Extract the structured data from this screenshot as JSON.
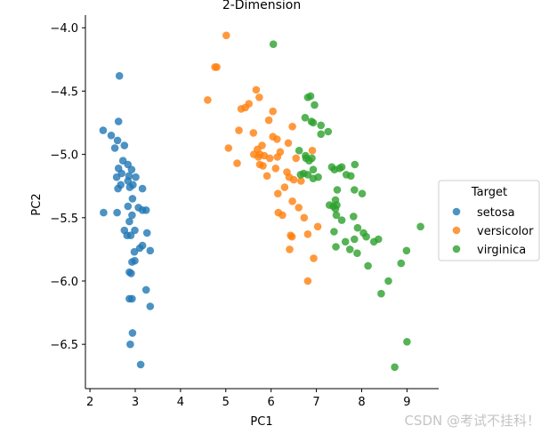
{
  "chart_data": {
    "type": "scatter",
    "title": "2-Dimension",
    "xlabel": "PC1",
    "ylabel": "PC2",
    "xlim": [
      1.9,
      9.7
    ],
    "ylim": [
      -6.85,
      -3.9
    ],
    "xticks": [
      2,
      3,
      4,
      5,
      6,
      7,
      8,
      9
    ],
    "yticks": [
      -4.0,
      -4.5,
      -5.0,
      -5.5,
      -6.0,
      -6.5
    ],
    "grid": false,
    "legend_position": "right",
    "legend_title": "Target",
    "series": [
      {
        "name": "setosa",
        "color": "#1f77b4",
        "points": [
          [
            2.65,
            -4.38
          ],
          [
            2.63,
            -4.74
          ],
          [
            2.29,
            -4.81
          ],
          [
            2.47,
            -4.85
          ],
          [
            2.61,
            -4.89
          ],
          [
            2.76,
            -4.93
          ],
          [
            2.55,
            -4.95
          ],
          [
            2.73,
            -5.05
          ],
          [
            2.84,
            -5.08
          ],
          [
            2.63,
            -5.11
          ],
          [
            2.92,
            -5.12
          ],
          [
            2.7,
            -5.15
          ],
          [
            2.86,
            -5.17
          ],
          [
            3.01,
            -5.18
          ],
          [
            2.59,
            -5.18
          ],
          [
            2.84,
            -5.21
          ],
          [
            2.95,
            -5.24
          ],
          [
            2.68,
            -5.24
          ],
          [
            2.88,
            -5.26
          ],
          [
            2.62,
            -5.27
          ],
          [
            3.16,
            -5.27
          ],
          [
            2.94,
            -5.35
          ],
          [
            2.84,
            -5.41
          ],
          [
            3.07,
            -5.42
          ],
          [
            2.3,
            -5.46
          ],
          [
            2.6,
            -5.46
          ],
          [
            2.93,
            -5.48
          ],
          [
            3.16,
            -5.44
          ],
          [
            3.24,
            -5.44
          ],
          [
            2.87,
            -5.53
          ],
          [
            2.76,
            -5.6
          ],
          [
            2.99,
            -5.6
          ],
          [
            2.82,
            -5.64
          ],
          [
            2.9,
            -5.64
          ],
          [
            3.26,
            -5.62
          ],
          [
            3.16,
            -5.72
          ],
          [
            3.1,
            -5.74
          ],
          [
            2.98,
            -5.77
          ],
          [
            3.33,
            -5.76
          ],
          [
            2.93,
            -5.85
          ],
          [
            2.99,
            -5.84
          ],
          [
            2.87,
            -5.93
          ],
          [
            2.91,
            -5.94
          ],
          [
            3.24,
            -6.07
          ],
          [
            2.87,
            -6.14
          ],
          [
            2.93,
            -6.14
          ],
          [
            3.33,
            -6.2
          ],
          [
            2.94,
            -6.41
          ],
          [
            2.89,
            -6.5
          ],
          [
            3.12,
            -6.66
          ]
        ]
      },
      {
        "name": "versicolor",
        "color": "#ff7f0e",
        "points": [
          [
            5.01,
            -4.06
          ],
          [
            4.8,
            -4.31
          ],
          [
            4.76,
            -4.31
          ],
          [
            4.6,
            -4.57
          ],
          [
            5.67,
            -4.49
          ],
          [
            5.74,
            -4.55
          ],
          [
            5.51,
            -4.6
          ],
          [
            5.43,
            -4.63
          ],
          [
            5.34,
            -4.64
          ],
          [
            6.04,
            -4.66
          ],
          [
            5.95,
            -4.73
          ],
          [
            5.29,
            -4.81
          ],
          [
            5.61,
            -4.83
          ],
          [
            6.47,
            -4.78
          ],
          [
            6.04,
            -4.86
          ],
          [
            6.13,
            -4.88
          ],
          [
            6.38,
            -4.91
          ],
          [
            5.06,
            -4.95
          ],
          [
            5.8,
            -4.93
          ],
          [
            5.7,
            -4.96
          ],
          [
            6.2,
            -4.98
          ],
          [
            6.91,
            -4.97
          ],
          [
            5.75,
            -5.0
          ],
          [
            5.62,
            -5.0
          ],
          [
            5.85,
            -5.01
          ],
          [
            5.72,
            -5.02
          ],
          [
            6.14,
            -5.02
          ],
          [
            5.97,
            -5.03
          ],
          [
            6.55,
            -5.03
          ],
          [
            5.25,
            -5.07
          ],
          [
            5.75,
            -5.08
          ],
          [
            5.82,
            -5.09
          ],
          [
            6.1,
            -5.11
          ],
          [
            6.35,
            -5.14
          ],
          [
            5.91,
            -5.17
          ],
          [
            6.5,
            -5.2
          ],
          [
            6.4,
            -5.18
          ],
          [
            6.66,
            -5.21
          ],
          [
            6.3,
            -5.26
          ],
          [
            6.15,
            -5.31
          ],
          [
            6.47,
            -5.37
          ],
          [
            6.61,
            -5.42
          ],
          [
            6.16,
            -5.46
          ],
          [
            6.73,
            -5.5
          ],
          [
            6.25,
            -5.48
          ],
          [
            7.03,
            -5.57
          ],
          [
            6.43,
            -5.64
          ],
          [
            6.46,
            -5.65
          ],
          [
            6.81,
            -5.63
          ],
          [
            6.41,
            -5.75
          ],
          [
            6.94,
            -5.82
          ],
          [
            6.81,
            -6.0
          ]
        ]
      },
      {
        "name": "virginica",
        "color": "#2ca02c",
        "points": [
          [
            6.05,
            -4.13
          ],
          [
            6.81,
            -4.55
          ],
          [
            6.87,
            -4.54
          ],
          [
            6.96,
            -4.61
          ],
          [
            6.75,
            -4.71
          ],
          [
            6.89,
            -4.74
          ],
          [
            6.93,
            -4.75
          ],
          [
            7.1,
            -4.77
          ],
          [
            7.26,
            -4.82
          ],
          [
            7.1,
            -4.84
          ],
          [
            6.62,
            -4.97
          ],
          [
            6.76,
            -5.01
          ],
          [
            6.77,
            -5.03
          ],
          [
            6.9,
            -5.03
          ],
          [
            6.84,
            -5.05
          ],
          [
            7.34,
            -5.1
          ],
          [
            7.4,
            -5.12
          ],
          [
            7.51,
            -5.11
          ],
          [
            7.56,
            -5.1
          ],
          [
            7.85,
            -5.08
          ],
          [
            6.93,
            -5.12
          ],
          [
            6.72,
            -5.15
          ],
          [
            6.65,
            -5.16
          ],
          [
            6.81,
            -5.16
          ],
          [
            6.93,
            -5.19
          ],
          [
            7.66,
            -5.16
          ],
          [
            7.04,
            -5.18
          ],
          [
            7.76,
            -5.17
          ],
          [
            7.46,
            -5.28
          ],
          [
            7.84,
            -5.28
          ],
          [
            8.01,
            -5.31
          ],
          [
            7.42,
            -5.36
          ],
          [
            7.29,
            -5.4
          ],
          [
            7.45,
            -5.4
          ],
          [
            7.37,
            -5.41
          ],
          [
            7.42,
            -5.43
          ],
          [
            7.44,
            -5.48
          ],
          [
            7.82,
            -5.49
          ],
          [
            7.56,
            -5.52
          ],
          [
            7.91,
            -5.58
          ],
          [
            7.39,
            -5.61
          ],
          [
            8.04,
            -5.62
          ],
          [
            8.1,
            -5.65
          ],
          [
            7.84,
            -5.67
          ],
          [
            8.37,
            -5.67
          ],
          [
            8.27,
            -5.69
          ],
          [
            7.64,
            -5.69
          ],
          [
            9.3,
            -5.57
          ],
          [
            7.43,
            -5.73
          ],
          [
            7.74,
            -5.75
          ],
          [
            8.99,
            -5.76
          ],
          [
            7.9,
            -5.78
          ],
          [
            8.87,
            -5.86
          ],
          [
            8.14,
            -5.88
          ],
          [
            8.59,
            -6.0
          ],
          [
            8.43,
            -6.1
          ],
          [
            9.0,
            -6.48
          ],
          [
            8.73,
            -6.68
          ]
        ]
      }
    ]
  },
  "watermark": "CSDN @考试不挂科！"
}
